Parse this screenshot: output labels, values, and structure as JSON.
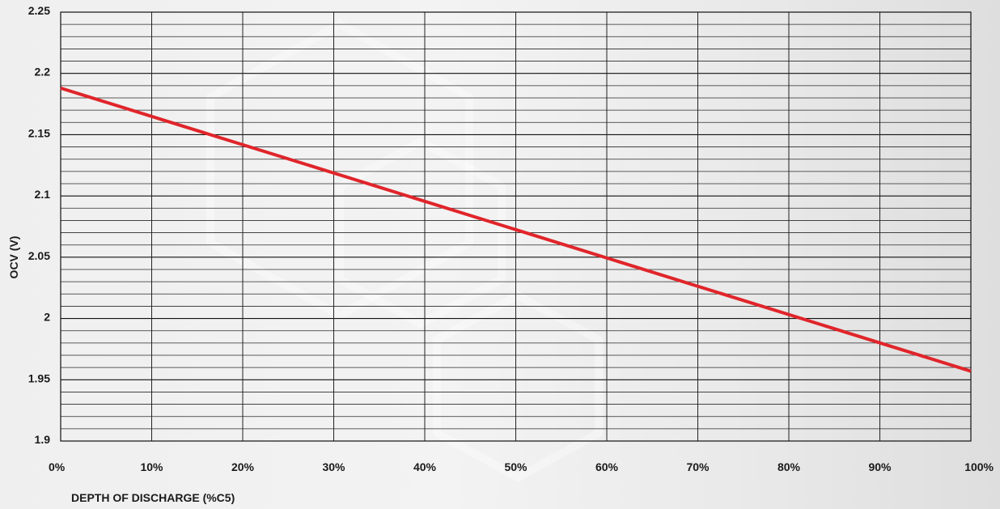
{
  "chart_data": {
    "type": "line",
    "title": "",
    "xlabel": "DEPTH OF DISCHARGE (%C5)",
    "ylabel": "OCV (V)",
    "x_ticks": [
      "0%",
      "10%",
      "20%",
      "30%",
      "40%",
      "50%",
      "60%",
      "70%",
      "80%",
      "90%",
      "100%"
    ],
    "y_ticks": [
      "1.9",
      "1.95",
      "2",
      "2.05",
      "2.1",
      "2.15",
      "2.2",
      "2.25"
    ],
    "xlim": [
      0,
      100
    ],
    "ylim": [
      1.9,
      2.25
    ],
    "grid": true,
    "y_minor_step": 0.01,
    "series": [
      {
        "color": "#e0252a",
        "x": [
          0,
          100
        ],
        "y": [
          2.188,
          1.957
        ]
      }
    ]
  }
}
